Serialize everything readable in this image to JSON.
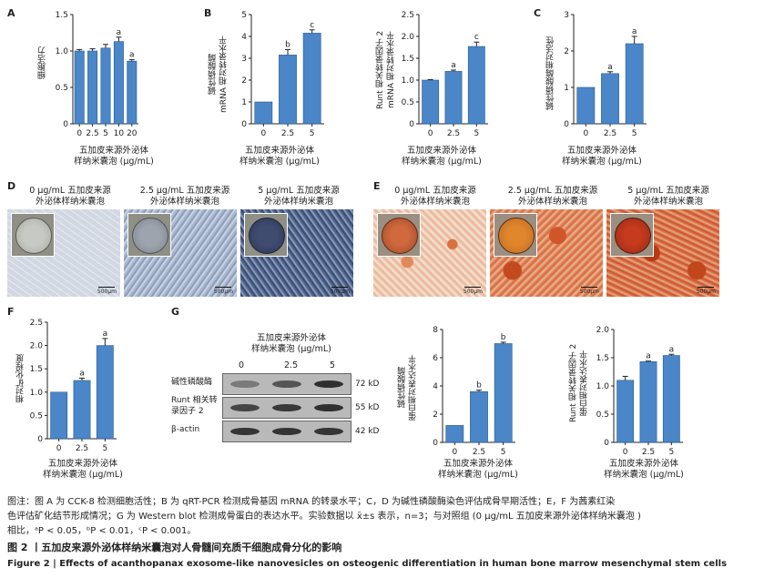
{
  "panels": {
    "A": {
      "letter": "A",
      "ylabel": "细胞活力",
      "xlabel_line1": "五加皮来源外泌体",
      "xlabel_line2": "样纳米囊泡 (μg/mL)"
    },
    "B1": {
      "letter": "B",
      "ylabel_line1": "碱性磷酸酶",
      "ylabel_line2": "mRNA 相对转录水平",
      "xlabel_line1": "五加皮来源外泌体",
      "xlabel_line2": "样纳米囊泡 (μg/mL)"
    },
    "B2": {
      "ylabel_line1": "Runt 相关转录因子 2",
      "ylabel_line2": "mRNA 相对转录水平",
      "xlabel_line1": "五加皮来源外泌体",
      "xlabel_line2": "样纳米囊泡 (μg/mL)"
    },
    "C": {
      "letter": "C",
      "ylabel": "碱性磷酸酶相对活性",
      "xlabel_line1": "五加皮来源外泌体",
      "xlabel_line2": "样纳米囊泡 (μg/mL)"
    },
    "D": {
      "letter": "D",
      "labels": [
        {
          "line1": "0 μg/mL 五加皮来源",
          "line2": "外泌体样纳米囊泡"
        },
        {
          "line1": "2.5 μg/mL 五加皮来源",
          "line2": "外泌体样纳米囊泡"
        },
        {
          "line1": "5 μg/mL 五加皮来源",
          "line2": "外泌体样纳米囊泡"
        }
      ],
      "scale": "500μm"
    },
    "E": {
      "letter": "E",
      "labels": [
        {
          "line1": "0 μg/mL 五加皮来源",
          "line2": "外泌体样纳米囊泡"
        },
        {
          "line1": "2.5 μg/mL 五加皮来源",
          "line2": "外泌体样纳米囊泡"
        },
        {
          "line1": "5 μg/mL 五加皮来源",
          "line2": "外泌体样纳米囊泡"
        }
      ],
      "scale": "500μm"
    },
    "F": {
      "letter": "F",
      "ylabel": "相对矿化程度",
      "xlabel_line1": "五加皮来源外泌体",
      "xlabel_line2": "样纳米囊泡 (μg/mL)"
    },
    "G": {
      "letter": "G",
      "header_line1": "五加皮来源外泌体",
      "header_line2": "样纳米囊泡 (μg/mL)",
      "lanes": [
        "0",
        "2.5",
        "5"
      ],
      "rows": [
        {
          "label_line1": "碱性磷酸酶",
          "label_line2": "",
          "kd": "72 kD",
          "intensity": [
            0.25,
            0.6,
            0.95
          ]
        },
        {
          "label_line1": "Runt 相关转",
          "label_line2": "录因子 2",
          "kd": "55 kD",
          "intensity": [
            0.75,
            0.85,
            0.95
          ]
        },
        {
          "label_line1": "β-actin",
          "label_line2": "",
          "kd": "42 kD",
          "intensity": [
            0.9,
            0.9,
            0.9
          ]
        }
      ],
      "chart1": {
        "ylabel_line1": "碱性磷酸酶",
        "ylabel_line2": "蛋白相对表达水平",
        "xlabel_line1": "五加皮来源外泌体",
        "xlabel_line2": "样纳米囊泡 (μg/mL)"
      },
      "chart2": {
        "ylabel_line1": "Runt 相关转录因子 2",
        "ylabel_line2": "蛋白相对表达水平",
        "xlabel_line1": "五加皮来源外泌体",
        "xlabel_line2": "样纳米囊泡 (μg/mL)"
      }
    }
  },
  "caption": {
    "note_line1": "图注：图 A 为 CCK-8 检测细胞活性；B 为 qRT-PCR 检测成骨基因 mRNA 的转录水平；C，D 为碱性磷酸酶染色评估成骨早期活性；E，F 为茜素红染",
    "note_line2": "色评估矿化结节形成情况；G 为 Western blot 检测成骨蛋白的表达水平。实验数据以 x̄±s 表示，n=3；与对照组 (0 μg/mL 五加皮来源外泌体样纳米囊泡 )",
    "note_line3": "相比，ᵃP < 0.05，ᵇP < 0.01，ᶜP < 0.001。",
    "title_cn": "图 2 丨五加皮来源外泌体样纳米囊泡对人骨髓间充质干细胞成骨分化的影响",
    "title_en": "Figure 2 | Effects of acanthopanax exosome-like nanovesicles on osteogenic differentiation in human bone marrow mesenchymal stem cells"
  },
  "chart_data": [
    {
      "id": "A",
      "type": "bar",
      "categories": [
        "0",
        "2.5",
        "5",
        "10",
        "20"
      ],
      "values": [
        1.0,
        1.0,
        1.04,
        1.13,
        0.86
      ],
      "errors": [
        0.02,
        0.03,
        0.05,
        0.06,
        0.02
      ],
      "sig": [
        "",
        "",
        "",
        "a",
        "a"
      ],
      "ylim": [
        0,
        1.5
      ],
      "yticks": [
        "0",
        "0.5",
        "1.0",
        "1.5"
      ],
      "ytick_values": [
        0,
        0.5,
        1.0,
        1.5
      ],
      "color": "#4a86c8"
    },
    {
      "id": "B1",
      "type": "bar",
      "categories": [
        "0",
        "2.5",
        "5"
      ],
      "values": [
        1.0,
        3.15,
        4.15
      ],
      "errors": [
        0.0,
        0.25,
        0.15
      ],
      "sig": [
        "",
        "b",
        "c"
      ],
      "ylim": [
        0,
        5
      ],
      "yticks": [
        "0",
        "1",
        "2",
        "3",
        "4",
        "5"
      ],
      "ytick_values": [
        0,
        1,
        2,
        3,
        4,
        5
      ],
      "color": "#4a86c8"
    },
    {
      "id": "B2",
      "type": "bar",
      "categories": [
        "0",
        "2.5",
        "5"
      ],
      "values": [
        1.0,
        1.2,
        1.77
      ],
      "errors": [
        0.01,
        0.03,
        0.1
      ],
      "sig": [
        "",
        "a",
        "c"
      ],
      "ylim": [
        0,
        2.5
      ],
      "yticks": [
        "0",
        "0.5",
        "1.0",
        "1.5",
        "2.0",
        "2.5"
      ],
      "ytick_values": [
        0,
        0.5,
        1.0,
        1.5,
        2.0,
        2.5
      ],
      "color": "#4a86c8"
    },
    {
      "id": "C",
      "type": "bar",
      "categories": [
        "0",
        "2.5",
        "5"
      ],
      "values": [
        1.0,
        1.38,
        2.2
      ],
      "errors": [
        0.0,
        0.05,
        0.2
      ],
      "sig": [
        "",
        "a",
        "a"
      ],
      "ylim": [
        0,
        3
      ],
      "yticks": [
        "0",
        "1",
        "2",
        "3"
      ],
      "ytick_values": [
        0,
        1,
        2,
        3
      ],
      "color": "#4a86c8"
    },
    {
      "id": "F",
      "type": "bar",
      "categories": [
        "0",
        "2.5",
        "5"
      ],
      "values": [
        1.0,
        1.25,
        2.0
      ],
      "errors": [
        0.0,
        0.05,
        0.15
      ],
      "sig": [
        "",
        "a",
        "a"
      ],
      "ylim": [
        0,
        2.5
      ],
      "yticks": [
        "0",
        "0.5",
        "1.0",
        "1.5",
        "2.0",
        "2.5"
      ],
      "ytick_values": [
        0,
        0.5,
        1.0,
        1.5,
        2.0,
        2.5
      ],
      "color": "#4a86c8"
    },
    {
      "id": "G1",
      "type": "bar",
      "categories": [
        "0",
        "2.5",
        "5"
      ],
      "values": [
        1.2,
        3.6,
        7.0
      ],
      "errors": [
        0.0,
        0.1,
        0.1
      ],
      "sig": [
        "",
        "b",
        "b"
      ],
      "ylim": [
        0,
        8
      ],
      "yticks": [
        "0",
        "2",
        "4",
        "6",
        "8"
      ],
      "ytick_values": [
        0,
        2,
        4,
        6,
        8
      ],
      "color": "#4a86c8"
    },
    {
      "id": "G2",
      "type": "bar",
      "categories": [
        "0",
        "2.5",
        "5"
      ],
      "values": [
        1.1,
        1.43,
        1.54
      ],
      "errors": [
        0.07,
        0.01,
        0.02
      ],
      "sig": [
        "",
        "a",
        "a"
      ],
      "ylim": [
        0,
        2.0
      ],
      "yticks": [
        "0",
        "0.5",
        "1.0",
        "1.5",
        "2.0"
      ],
      "ytick_values": [
        0,
        0.5,
        1.0,
        1.5,
        2.0
      ],
      "color": "#4a86c8"
    }
  ]
}
